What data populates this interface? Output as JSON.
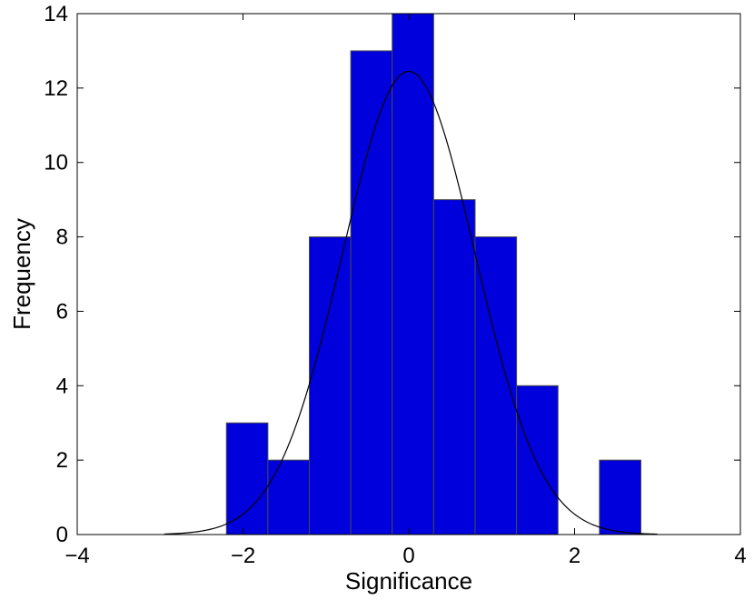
{
  "chart_data": {
    "type": "bar",
    "xlabel": "Significance",
    "ylabel": "Frequency",
    "xlim": [
      -4,
      4
    ],
    "ylim": [
      0,
      14
    ],
    "xticks": [
      -4,
      -2,
      0,
      2,
      4
    ],
    "yticks": [
      0,
      2,
      4,
      6,
      8,
      10,
      12,
      14
    ],
    "xtick_labels": [
      "−4",
      "−2",
      "0",
      "2",
      "4"
    ],
    "ytick_labels": [
      "0",
      "2",
      "4",
      "6",
      "8",
      "10",
      "12",
      "14"
    ],
    "bin_width": 0.5,
    "bins": [
      {
        "center": -1.95,
        "value": 3
      },
      {
        "center": -1.45,
        "value": 2
      },
      {
        "center": -0.95,
        "value": 8
      },
      {
        "center": -0.45,
        "value": 13
      },
      {
        "center": 0.05,
        "value": 14
      },
      {
        "center": 0.55,
        "value": 9
      },
      {
        "center": 1.05,
        "value": 8
      },
      {
        "center": 1.55,
        "value": 4
      },
      {
        "center": 2.55,
        "value": 2
      }
    ],
    "fit_curve": {
      "type": "gaussian",
      "mean": 0.0,
      "sigma": 0.8,
      "peak": 12.45,
      "x_range": [
        -2.95,
        3.0
      ]
    },
    "bar_color": "#0000dd",
    "bar_edge_color": "#4a4a4a",
    "curve_color": "#000000",
    "grid": false,
    "box": true
  }
}
